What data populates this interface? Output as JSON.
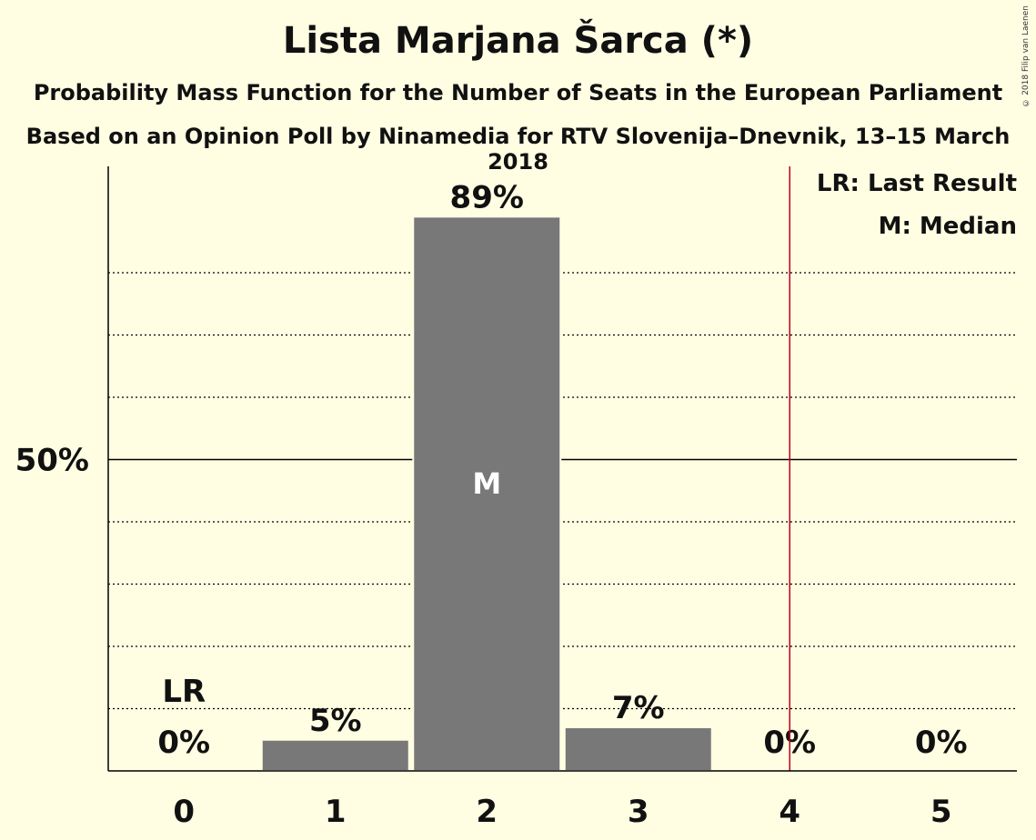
{
  "title": "Lista Marjana Šarca (*)",
  "subtitle_1": "Probability Mass Function for the Number of Seats in the European Parliament",
  "subtitle_2": "Based on an Opinion Poll by Ninamedia for RTV Slovenija–Dnevnik, 13–15 March 2018",
  "copyright": "© 2018 Filip van Laenen",
  "legend": {
    "lr": "LR: Last Result",
    "m": "M: Median"
  },
  "colors": {
    "background": "#FFFEE3",
    "bar": "#787878",
    "last_result_line": "#C0001A",
    "axis": "#000000"
  },
  "chart_data": {
    "type": "bar",
    "categories": [
      "0",
      "1",
      "2",
      "3",
      "4",
      "5"
    ],
    "values": [
      0,
      5,
      89,
      7,
      0,
      0
    ],
    "value_labels": [
      "0%",
      "5%",
      "89%",
      "7%",
      "0%",
      "0%"
    ],
    "ylim": [
      0,
      100
    ],
    "y_tick_labels": [
      {
        "value": 50,
        "label": "50%"
      }
    ],
    "y_gridlines": [
      10,
      20,
      30,
      40,
      60,
      70,
      80
    ],
    "grid": true,
    "last_result": {
      "seats": 0,
      "label": "LR"
    },
    "median": {
      "seats": 2,
      "label": "M"
    },
    "last_result_marker_x": 4.5,
    "legend_position": "top-right"
  }
}
